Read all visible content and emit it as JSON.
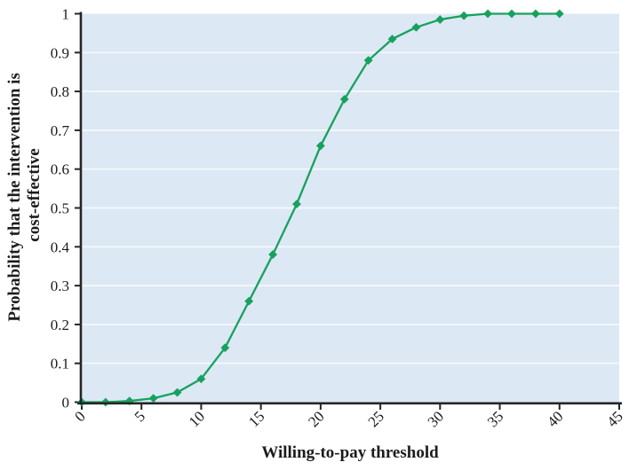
{
  "chart_data": {
    "type": "line",
    "title": "",
    "xlabel": "Willing-to-pay threshold",
    "ylabel": "Probability that the intervention is cost-effective",
    "ylabel_lines": [
      "Probability that the intervention is",
      "cost-effective"
    ],
    "x": [
      0,
      2,
      4,
      6,
      8,
      10,
      12,
      14,
      16,
      18,
      20,
      22,
      24,
      26,
      28,
      30,
      32,
      34,
      36,
      38,
      40
    ],
    "series": [
      {
        "name": "probability-cost-effective-curve",
        "values": [
          0,
          0,
          0.003,
          0.01,
          0.025,
          0.06,
          0.14,
          0.26,
          0.38,
          0.51,
          0.66,
          0.78,
          0.88,
          0.935,
          0.965,
          0.985,
          0.995,
          1,
          1,
          1,
          1
        ]
      }
    ],
    "xlim": [
      0,
      45
    ],
    "ylim": [
      0,
      1
    ],
    "x_ticks": [
      0,
      5,
      10,
      15,
      20,
      25,
      30,
      35,
      40,
      45
    ],
    "x_tick_labels": [
      "0",
      "5",
      "10",
      "15",
      "20",
      "25",
      "30",
      "35",
      "40",
      "45"
    ],
    "y_ticks": [
      0,
      0.1,
      0.2,
      0.3,
      0.4,
      0.5,
      0.6,
      0.7,
      0.8,
      0.9,
      1
    ],
    "y_tick_labels": [
      "0",
      "0.1",
      "0.2",
      "0.3",
      "0.4",
      "0.5",
      "0.6",
      "0.7",
      "0.8",
      "0.9",
      "1"
    ],
    "grid": "horizontal",
    "legend": "none",
    "marker": "diamond",
    "x_tick_label_rotation": -45,
    "colors": {
      "line": "#17a15e",
      "marker": "#17a15e",
      "plot_background": "#dce8f4",
      "gridline": "#f6f9fc",
      "axis": "#262626",
      "text": "#1c1c1c",
      "page_background": "#ffffff"
    }
  }
}
